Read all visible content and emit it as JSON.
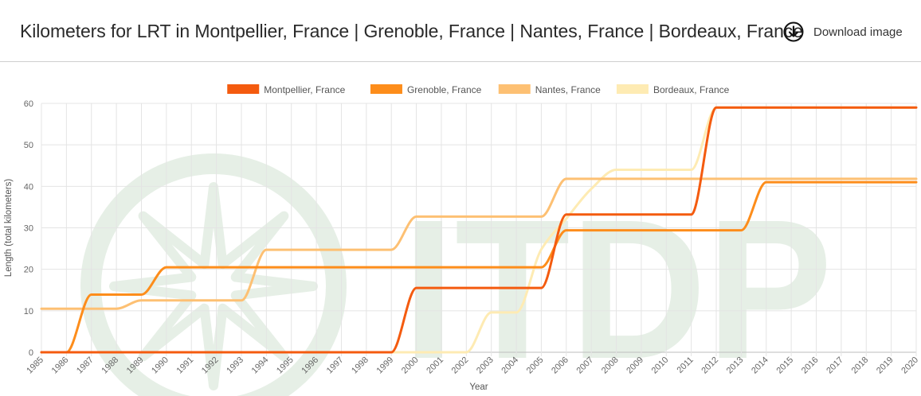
{
  "header": {
    "title": "Kilometers for LRT in Montpellier, France | Grenoble, France | Nantes, France | Bordeaux, France",
    "download_label": "Download image",
    "download_icon": "download-circle-icon"
  },
  "watermark": {
    "text": "ITDP",
    "color": "#e6efe6"
  },
  "chart_data": {
    "type": "line",
    "title": "",
    "xlabel": "Year",
    "ylabel": "Length (total kilometers)",
    "x": [
      1985,
      1986,
      1987,
      1988,
      1989,
      1990,
      1991,
      1992,
      1993,
      1994,
      1995,
      1996,
      1997,
      1998,
      1999,
      2000,
      2001,
      2002,
      2003,
      2004,
      2005,
      2006,
      2007,
      2008,
      2009,
      2010,
      2011,
      2012,
      2013,
      2014,
      2015,
      2016,
      2017,
      2018,
      2019,
      2020
    ],
    "ylim": [
      0,
      60
    ],
    "yticks": [
      0,
      10,
      20,
      30,
      40,
      50,
      60
    ],
    "grid": true,
    "legend_position": "top",
    "series": [
      {
        "name": "Montpellier, France",
        "color": "#f45b0f",
        "values": [
          0,
          0,
          0,
          0,
          0,
          0,
          0,
          0,
          0,
          0,
          0,
          0,
          0,
          0,
          0,
          15.5,
          15.5,
          15.5,
          15.5,
          15.5,
          15.5,
          33.2,
          33.2,
          33.2,
          33.2,
          33.2,
          33.2,
          59,
          59,
          59,
          59,
          59,
          59,
          59,
          59,
          59
        ]
      },
      {
        "name": "Grenoble, France",
        "color": "#fd8d1b",
        "values": [
          0,
          0,
          13.9,
          13.9,
          13.9,
          20.5,
          20.5,
          20.5,
          20.5,
          20.5,
          20.5,
          20.5,
          20.5,
          20.5,
          20.5,
          20.5,
          20.5,
          20.5,
          20.5,
          20.5,
          20.5,
          29.4,
          29.4,
          29.4,
          29.4,
          29.4,
          29.4,
          29.4,
          29.4,
          41,
          41,
          41,
          41,
          41,
          41,
          41
        ]
      },
      {
        "name": "Nantes, France",
        "color": "#fdc073",
        "values": [
          10.5,
          10.5,
          10.5,
          10.5,
          12.5,
          12.5,
          12.5,
          12.5,
          12.5,
          24.7,
          24.7,
          24.7,
          24.7,
          24.7,
          24.7,
          32.7,
          32.7,
          32.7,
          32.7,
          32.7,
          32.7,
          41.8,
          41.8,
          41.8,
          41.8,
          41.8,
          41.8,
          41.8,
          41.8,
          41.8,
          41.8,
          41.8,
          41.8,
          41.8,
          41.8,
          41.8
        ]
      },
      {
        "name": "Bordeaux, France",
        "color": "#feebb3",
        "values": [
          0,
          0,
          0,
          0,
          0,
          0,
          0,
          0,
          0,
          0,
          0,
          0,
          0,
          0,
          0,
          0,
          0,
          0,
          9.6,
          9.6,
          24.8,
          32.2,
          39.4,
          44,
          44,
          44,
          44,
          59,
          59,
          59,
          59,
          59,
          59,
          59,
          59,
          59
        ]
      }
    ]
  }
}
